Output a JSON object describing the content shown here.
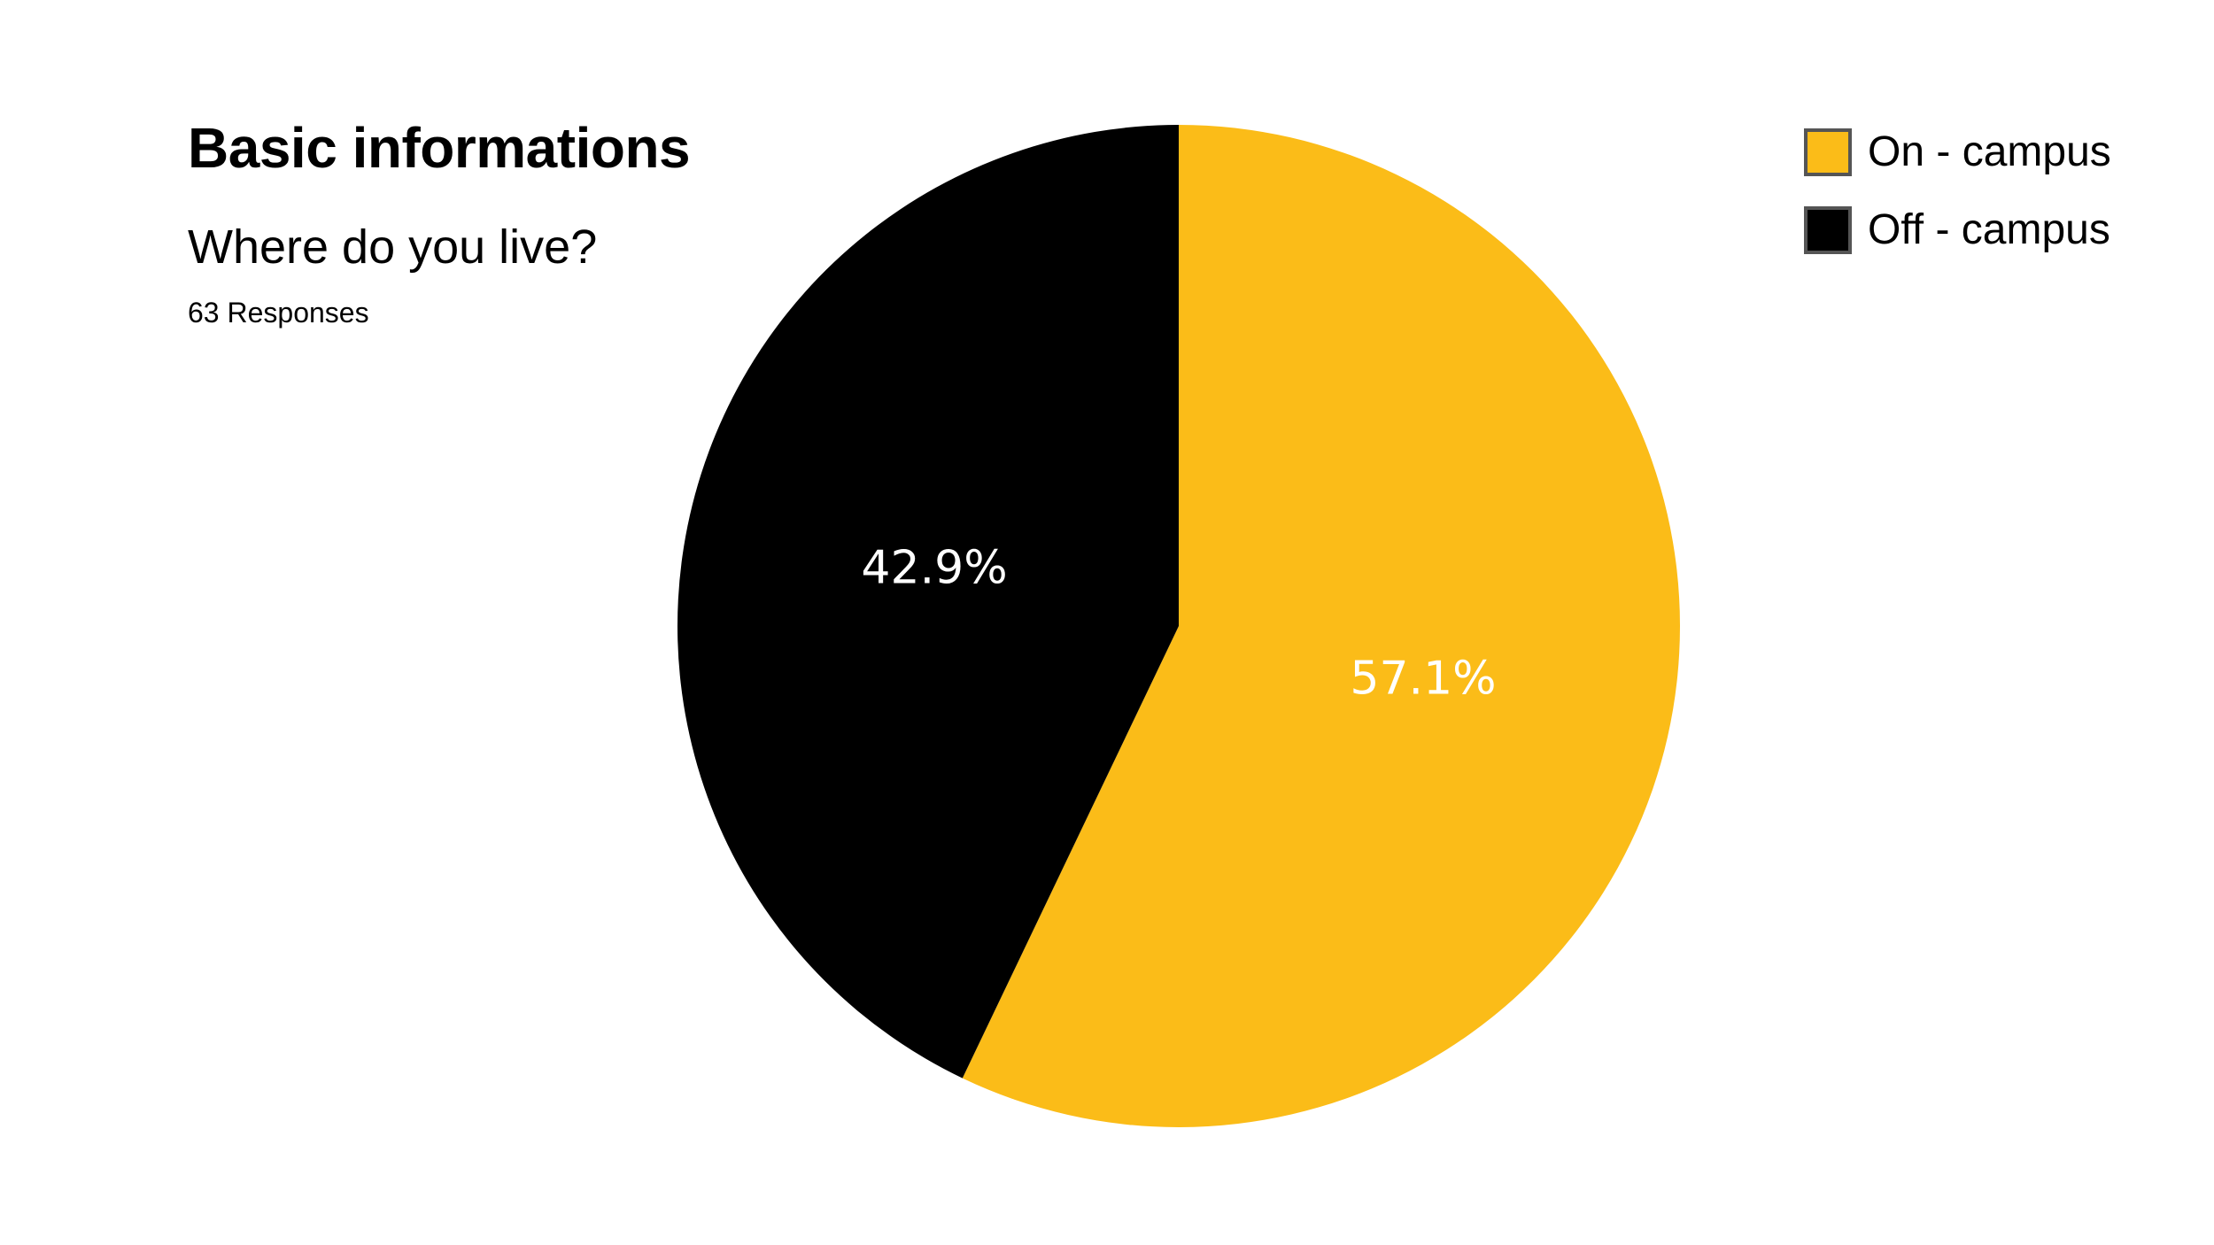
{
  "header": {
    "title": "Basic informations",
    "question": "Where do you live?",
    "responses": "63 Responses"
  },
  "chart_data": {
    "type": "pie",
    "title": "",
    "series": [
      {
        "name": "On - campus",
        "value": 57.1,
        "label": "57.1%",
        "color": "#FBBC18"
      },
      {
        "name": "Off - campus",
        "value": 42.9,
        "label": "42.9%",
        "color": "#000000"
      }
    ],
    "start_angle": "12 o'clock",
    "direction": "clockwise",
    "legend_position": "top-right"
  }
}
